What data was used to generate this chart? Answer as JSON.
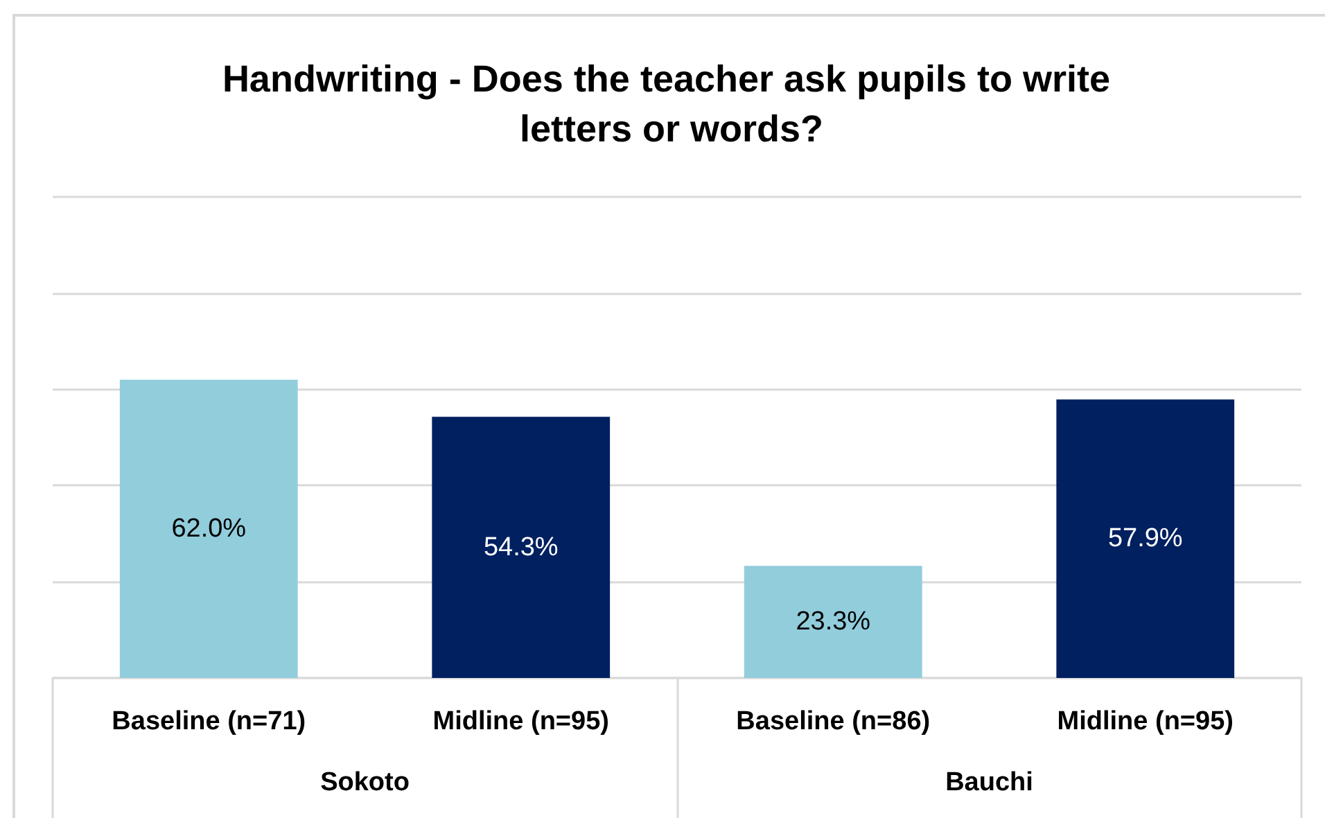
{
  "chart_data": {
    "type": "bar",
    "title": "Handwriting - Does the teacher ask pupils to write letters or words?",
    "categories": [
      "Baseline (n=71)",
      "Midline (n=95)",
      "Baseline (n=86)",
      "Midline (n=95)"
    ],
    "values": [
      62.0,
      54.3,
      23.3,
      57.9
    ],
    "colors": [
      "#92cddc",
      "#002060",
      "#92cddc",
      "#002060"
    ],
    "value_labels": [
      "62.0%",
      "54.3%",
      "23.3%",
      "57.9%"
    ],
    "annotations": [
      "Sokoto",
      "Bauchi"
    ],
    "ylim": [
      0,
      100
    ],
    "yticks": [
      {
        "value": 0,
        "label": null
      },
      {
        "value": 20,
        "label": null
      },
      {
        "value": 40,
        "label": null
      },
      {
        "value": 60,
        "label": null
      },
      {
        "value": 80,
        "label": null
      },
      {
        "value": 100,
        "label": null
      }
    ],
    "grid": "y",
    "tick_labels": "x"
  }
}
